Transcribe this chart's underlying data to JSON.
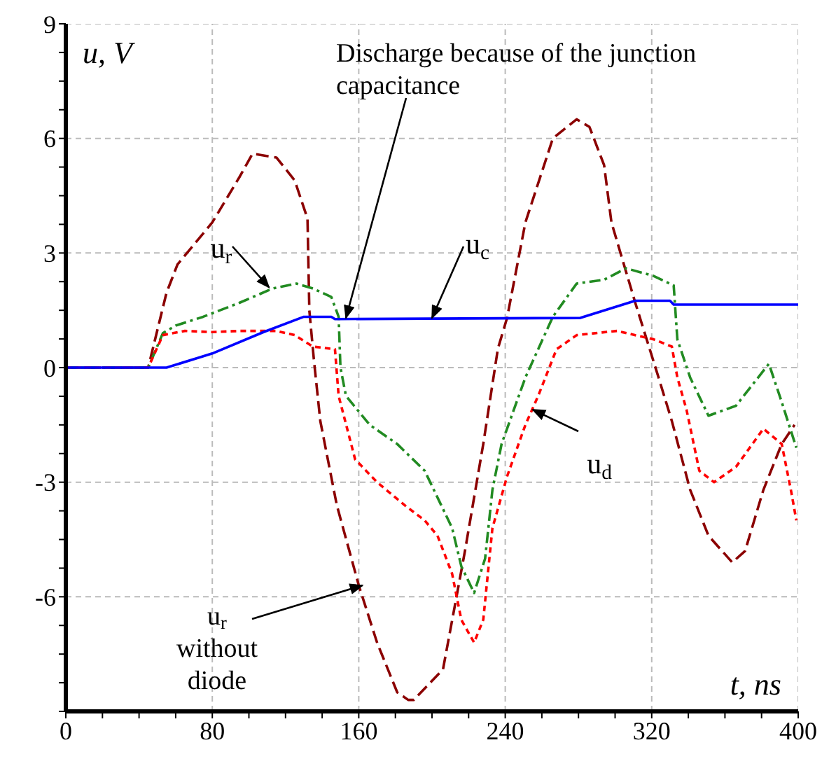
{
  "chart_data": {
    "type": "line",
    "xlabel": "t, ns",
    "ylabel": "u, V",
    "xlim": [
      0,
      400
    ],
    "ylim": [
      -9,
      9
    ],
    "xticks": [
      0,
      {
        "value": 20,
        "label": null
      },
      {
        "value": 40,
        "label": null
      },
      {
        "value": 60,
        "label": null
      },
      80,
      {
        "value": 100,
        "label": null
      },
      {
        "value": 120,
        "label": null
      },
      {
        "value": 140,
        "label": null
      },
      160,
      {
        "value": 180,
        "label": null
      },
      {
        "value": 200,
        "label": null
      },
      {
        "value": 220,
        "label": null
      },
      240,
      {
        "value": 260,
        "label": null
      },
      {
        "value": 280,
        "label": null
      },
      {
        "value": 300,
        "label": null
      },
      320,
      {
        "value": 340,
        "label": null
      },
      {
        "value": 360,
        "label": null
      },
      {
        "value": 380,
        "label": null
      },
      400
    ],
    "yticks": [
      {
        "value": -9,
        "label": null
      },
      {
        "value": -8.25,
        "label": null
      },
      {
        "value": -7.5,
        "label": null
      },
      {
        "value": -6.75,
        "label": null
      },
      -6,
      {
        "value": -5.25,
        "label": null
      },
      {
        "value": -4.5,
        "label": null
      },
      {
        "value": -3.75,
        "label": null
      },
      -3,
      {
        "value": -2.25,
        "label": null
      },
      {
        "value": -1.5,
        "label": null
      },
      {
        "value": -0.75,
        "label": null
      },
      0,
      {
        "value": 0.75,
        "label": null
      },
      {
        "value": 1.5,
        "label": null
      },
      {
        "value": 2.25,
        "label": null
      },
      3,
      {
        "value": 3.75,
        "label": null
      },
      {
        "value": 4.5,
        "label": null
      },
      {
        "value": 5.25,
        "label": null
      },
      6,
      {
        "value": 6.75,
        "label": null
      },
      {
        "value": 7.5,
        "label": null
      },
      {
        "value": 8.25,
        "label": null
      },
      9
    ],
    "grid": true,
    "marker": "none",
    "series": [
      {
        "color": "#8b0000",
        "line_style": "dashed",
        "x": [
          0,
          45,
          55,
          61,
          80,
          95,
          102,
          115,
          125,
          132,
          133,
          135.5,
          139,
          148,
          160,
          170,
          181,
          187,
          190,
          206,
          213,
          218,
          228,
          236,
          241,
          251,
          266,
          279,
          286,
          294,
          298,
          311,
          324,
          331,
          341,
          351,
          364,
          371,
          381,
          391,
          398
        ],
        "values": [
          0,
          0,
          1.96,
          2.7,
          3.8,
          5.0,
          5.6,
          5.5,
          4.9,
          3.9,
          1.5,
          0.2,
          -1.4,
          -3.6,
          -5.7,
          -7.2,
          -8.5,
          -8.7,
          -8.7,
          -7.9,
          -6.1,
          -4.8,
          -2.0,
          0.5,
          1.3,
          3.8,
          6.0,
          6.5,
          6.3,
          5.3,
          3.8,
          1.7,
          -0.3,
          -1.4,
          -3.2,
          -4.4,
          -5.1,
          -4.8,
          -3.2,
          -2.0,
          -1.5
        ]
      },
      {
        "color": "#228b22",
        "line_style": "dashdot",
        "x": [
          0,
          45,
          53,
          60,
          75,
          95,
          113,
          126,
          135,
          145,
          149,
          150,
          153,
          166,
          181,
          196,
          200,
          211,
          216,
          223,
          229,
          233,
          238,
          251,
          266,
          279,
          294,
          306,
          321,
          332,
          334,
          341,
          351,
          366,
          384,
          391,
          399
        ],
        "values": [
          0,
          0,
          0.9,
          1.1,
          1.33,
          1.7,
          2.07,
          2.2,
          2.07,
          1.85,
          1.33,
          0,
          -0.74,
          -1.5,
          -2.0,
          -2.7,
          -3.1,
          -4.2,
          -5.2,
          -5.9,
          -5.0,
          -3.2,
          -2.0,
          -0.26,
          1.33,
          2.2,
          2.3,
          2.6,
          2.4,
          2.15,
          0.74,
          -0.26,
          -1.26,
          -1.0,
          0.1,
          -0.9,
          -2.1
        ]
      },
      {
        "color": "#ff0000",
        "line_style": "dotted",
        "x": [
          0,
          45,
          53,
          65,
          80,
          95,
          115,
          125,
          135,
          147,
          149,
          158,
          170,
          185,
          196,
          203,
          211,
          216,
          223,
          228,
          233,
          241,
          251,
          258,
          268,
          279,
          301,
          321,
          331,
          334,
          339,
          346,
          354,
          366,
          381,
          391,
          396,
          399
        ],
        "values": [
          0,
          0,
          0.85,
          0.96,
          0.93,
          0.96,
          0.96,
          0.85,
          0.55,
          0.48,
          -0.74,
          -2.4,
          -3.0,
          -3.6,
          -4.0,
          -4.4,
          -5.4,
          -6.6,
          -7.2,
          -6.6,
          -4.2,
          -2.85,
          -1.5,
          -0.74,
          0.48,
          0.85,
          0.96,
          0.74,
          0.55,
          -0.26,
          -1.1,
          -2.7,
          -3.0,
          -2.6,
          -1.6,
          -2.0,
          -3.2,
          -4.0
        ]
      },
      {
        "color": "#0000ff",
        "line_style": "solid",
        "x": [
          0,
          55,
          80,
          108,
          130,
          145,
          147,
          281,
          311,
          330,
          332,
          400
        ],
        "values": [
          0,
          0,
          0.37,
          0.93,
          1.33,
          1.33,
          1.27,
          1.3,
          1.75,
          1.75,
          1.65,
          1.65
        ]
      }
    ],
    "annotations": [
      {
        "text": "Discharge because of the junction capacitance",
        "x": 153,
        "y": 1.3
      },
      {
        "text": "u$_{r}$",
        "x": 111,
        "y": 2.1
      },
      {
        "text": "u$_{c}$",
        "x": 200,
        "y": 1.3
      },
      {
        "text": "u$_{d}$",
        "x": 255,
        "y": -1.1
      },
      {
        "text": "u$_{r}$ without diode",
        "x": 162,
        "y": -5.7
      }
    ]
  }
}
